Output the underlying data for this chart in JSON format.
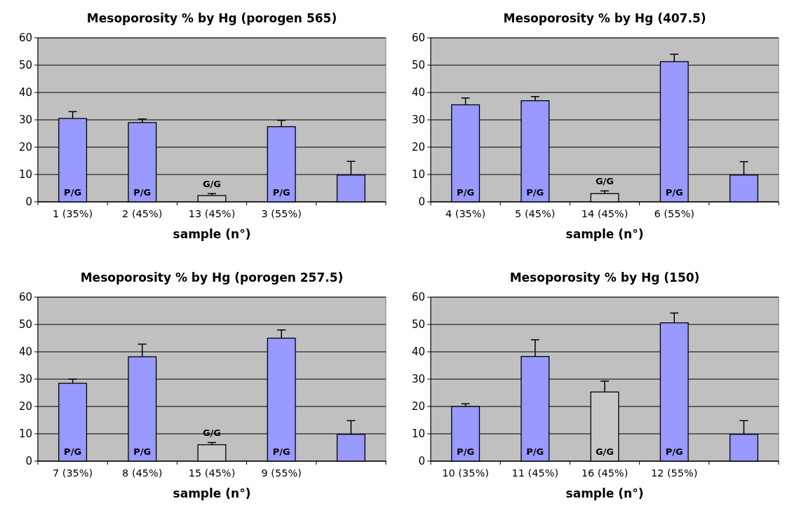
{
  "chart_data": [
    {
      "type": "bar",
      "title": "Mesoporosity % by Hg (porogen 565)",
      "xlabel": "sample (n°)",
      "categories": [
        "1 (35%)",
        "2 (45%)",
        "13 (45%)",
        "3 (55%)",
        null
      ],
      "values": [
        30.5,
        29,
        2.3,
        27.5,
        9.8
      ],
      "colors": [
        "#9999ff",
        "#9999ff",
        "#c8c8c8",
        "#9999ff",
        "#9999ff"
      ],
      "errors": [
        [
          30.5,
          33
        ],
        [
          29,
          30.3
        ],
        [
          2.3,
          3
        ],
        [
          27.5,
          29.8
        ],
        [
          9.8,
          14.8
        ]
      ],
      "ylim": [
        0,
        60
      ],
      "yticks": [
        0,
        10,
        20,
        30,
        40,
        50,
        60
      ],
      "grid": "y",
      "value_labels": [
        "P/G",
        "P/G",
        "G/G",
        "P/G",
        null
      ]
    },
    {
      "type": "bar",
      "title": "Mesoporosity % by Hg (407.5)",
      "xlabel": "sample (n°)",
      "categories": [
        "4 (35%)",
        "5 (45%)",
        "14 (45%)",
        "6 (55%)",
        null
      ],
      "values": [
        35.5,
        37,
        3,
        51.3,
        9.8
      ],
      "colors": [
        "#9999ff",
        "#9999ff",
        "#c8c8c8",
        "#9999ff",
        "#9999ff"
      ],
      "errors": [
        [
          35.5,
          38
        ],
        [
          37,
          38.5
        ],
        [
          3,
          4
        ],
        [
          51.3,
          54
        ],
        [
          9.8,
          14.7
        ]
      ],
      "ylim": [
        0,
        60
      ],
      "yticks": [
        0,
        10,
        20,
        30,
        40,
        50,
        60
      ],
      "grid": "y",
      "value_labels": [
        "P/G",
        "P/G",
        "G/G",
        "P/G",
        null
      ]
    },
    {
      "type": "bar",
      "title": "Mesoporosity % by Hg (porogen 257.5)",
      "xlabel": "sample (n°)",
      "categories": [
        "7 (35%)",
        "8 (45%)",
        "15 (45%)",
        "9 (55%)",
        null
      ],
      "values": [
        28.5,
        38.2,
        6,
        45,
        9.8
      ],
      "colors": [
        "#9999ff",
        "#9999ff",
        "#c8c8c8",
        "#9999ff",
        "#9999ff"
      ],
      "errors": [
        [
          28.5,
          30
        ],
        [
          38.2,
          42.8
        ],
        [
          6,
          6.8
        ],
        [
          45,
          48
        ],
        [
          9.8,
          14.8
        ]
      ],
      "ylim": [
        0,
        60
      ],
      "yticks": [
        0,
        10,
        20,
        30,
        40,
        50,
        60
      ],
      "grid": "y",
      "value_labels": [
        "P/G",
        "P/G",
        "G/G",
        "P/G",
        null
      ]
    },
    {
      "type": "bar",
      "title": "Mesoporosity % by Hg (150)",
      "xlabel": "sample (n°)",
      "categories": [
        "10 (35%)",
        "11 (45%)",
        "16 (45%)",
        "12 (55%)",
        null
      ],
      "values": [
        20,
        38.3,
        25.3,
        50.6,
        9.8
      ],
      "colors": [
        "#9999ff",
        "#9999ff",
        "#c8c8c8",
        "#9999ff",
        "#9999ff"
      ],
      "errors": [
        [
          20,
          21
        ],
        [
          38.3,
          44.4
        ],
        [
          25.3,
          29.3
        ],
        [
          50.6,
          54.2
        ],
        [
          9.8,
          14.8
        ]
      ],
      "ylim": [
        0,
        60
      ],
      "yticks": [
        0,
        10,
        20,
        30,
        40,
        50,
        60
      ],
      "grid": "y",
      "value_labels": [
        "P/G",
        "P/G",
        "G/G",
        "P/G",
        null
      ]
    }
  ]
}
